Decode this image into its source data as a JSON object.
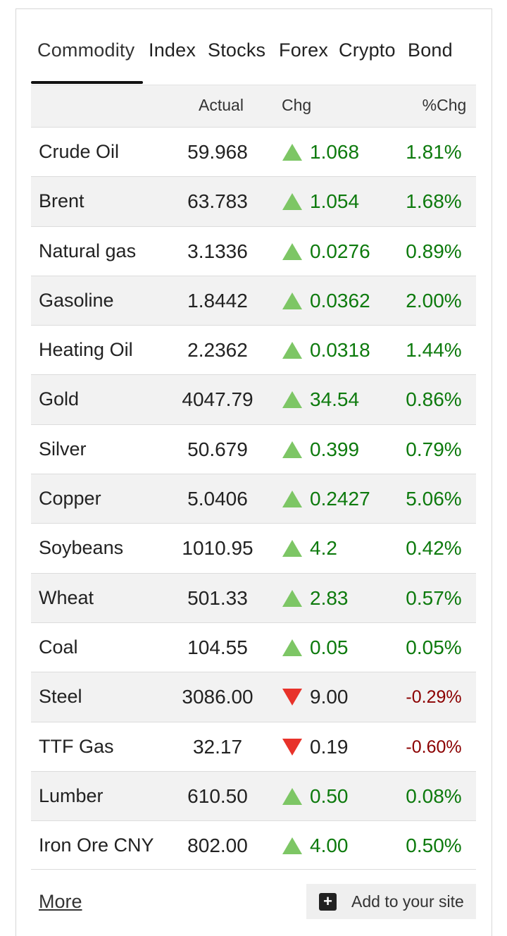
{
  "tabs": [
    {
      "label": "Commodity",
      "active": true
    },
    {
      "label": "Index",
      "active": false
    },
    {
      "label": "Stocks",
      "active": false
    },
    {
      "label": "Forex",
      "active": false
    },
    {
      "label": "Crypto",
      "active": false
    },
    {
      "label": "Bond",
      "active": false
    }
  ],
  "table": {
    "headers": {
      "name": "",
      "actual": "Actual",
      "chg": "Chg",
      "pct": "%Chg"
    },
    "rows": [
      {
        "name": "Crude Oil",
        "actual": "59.968",
        "chg": "1.068",
        "pct": "1.81%",
        "direction": "up"
      },
      {
        "name": "Brent",
        "actual": "63.783",
        "chg": "1.054",
        "pct": "1.68%",
        "direction": "up"
      },
      {
        "name": "Natural gas",
        "actual": "3.1336",
        "chg": "0.0276",
        "pct": "0.89%",
        "direction": "up"
      },
      {
        "name": "Gasoline",
        "actual": "1.8442",
        "chg": "0.0362",
        "pct": "2.00%",
        "direction": "up"
      },
      {
        "name": "Heating Oil",
        "actual": "2.2362",
        "chg": "0.0318",
        "pct": "1.44%",
        "direction": "up"
      },
      {
        "name": "Gold",
        "actual": "4047.79",
        "chg": "34.54",
        "pct": "0.86%",
        "direction": "up"
      },
      {
        "name": "Silver",
        "actual": "50.679",
        "chg": "0.399",
        "pct": "0.79%",
        "direction": "up"
      },
      {
        "name": "Copper",
        "actual": "5.0406",
        "chg": "0.2427",
        "pct": "5.06%",
        "direction": "up"
      },
      {
        "name": "Soybeans",
        "actual": "1010.95",
        "chg": "4.2",
        "pct": "0.42%",
        "direction": "up"
      },
      {
        "name": "Wheat",
        "actual": "501.33",
        "chg": "2.83",
        "pct": "0.57%",
        "direction": "up"
      },
      {
        "name": "Coal",
        "actual": "104.55",
        "chg": "0.05",
        "pct": "0.05%",
        "direction": "up"
      },
      {
        "name": "Steel",
        "actual": "3086.00",
        "chg": "9.00",
        "pct": "-0.29%",
        "direction": "down"
      },
      {
        "name": "TTF Gas",
        "actual": "32.17",
        "chg": "0.19",
        "pct": "-0.60%",
        "direction": "down"
      },
      {
        "name": "Lumber",
        "actual": "610.50",
        "chg": "0.50",
        "pct": "0.08%",
        "direction": "up"
      },
      {
        "name": "Iron Ore CNY",
        "actual": "802.00",
        "chg": "4.00",
        "pct": "0.50%",
        "direction": "up"
      }
    ]
  },
  "footer": {
    "more_label": "More",
    "add_label": "Add to your site",
    "add_icon": "plus-icon"
  },
  "colors": {
    "up_arrow": "#7dc665",
    "down_arrow": "#e8322a",
    "up_text": "#0d7a0d",
    "down_text": "#8b0000",
    "row_alt_bg": "#f2f2f2"
  }
}
